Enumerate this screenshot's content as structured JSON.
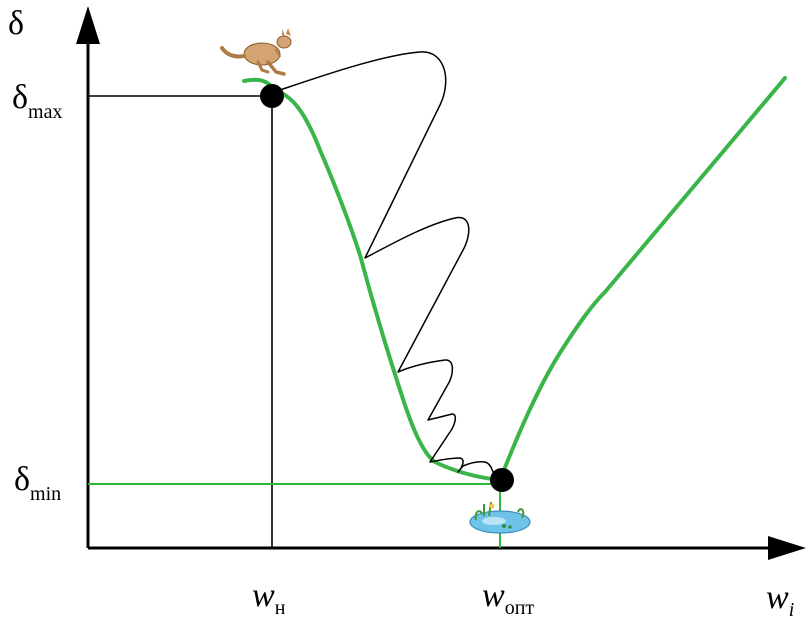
{
  "axes": {
    "y_symbol": "δ",
    "x_symbol": "w",
    "x_subscript": "i"
  },
  "labels": {
    "delta_symbol": "δ",
    "delta_max_sub": "max",
    "delta_min_sub": "min",
    "w_symbol": "w",
    "w_start_sub": "н",
    "w_opt_sub": "опт"
  },
  "colors": {
    "curve": "#39b54a",
    "guide_min": "#2db83d",
    "axis": "#000000",
    "search_path": "#000000"
  },
  "icons": {
    "start_marker": "kangaroo-icon",
    "end_marker": "pond-icon"
  }
}
